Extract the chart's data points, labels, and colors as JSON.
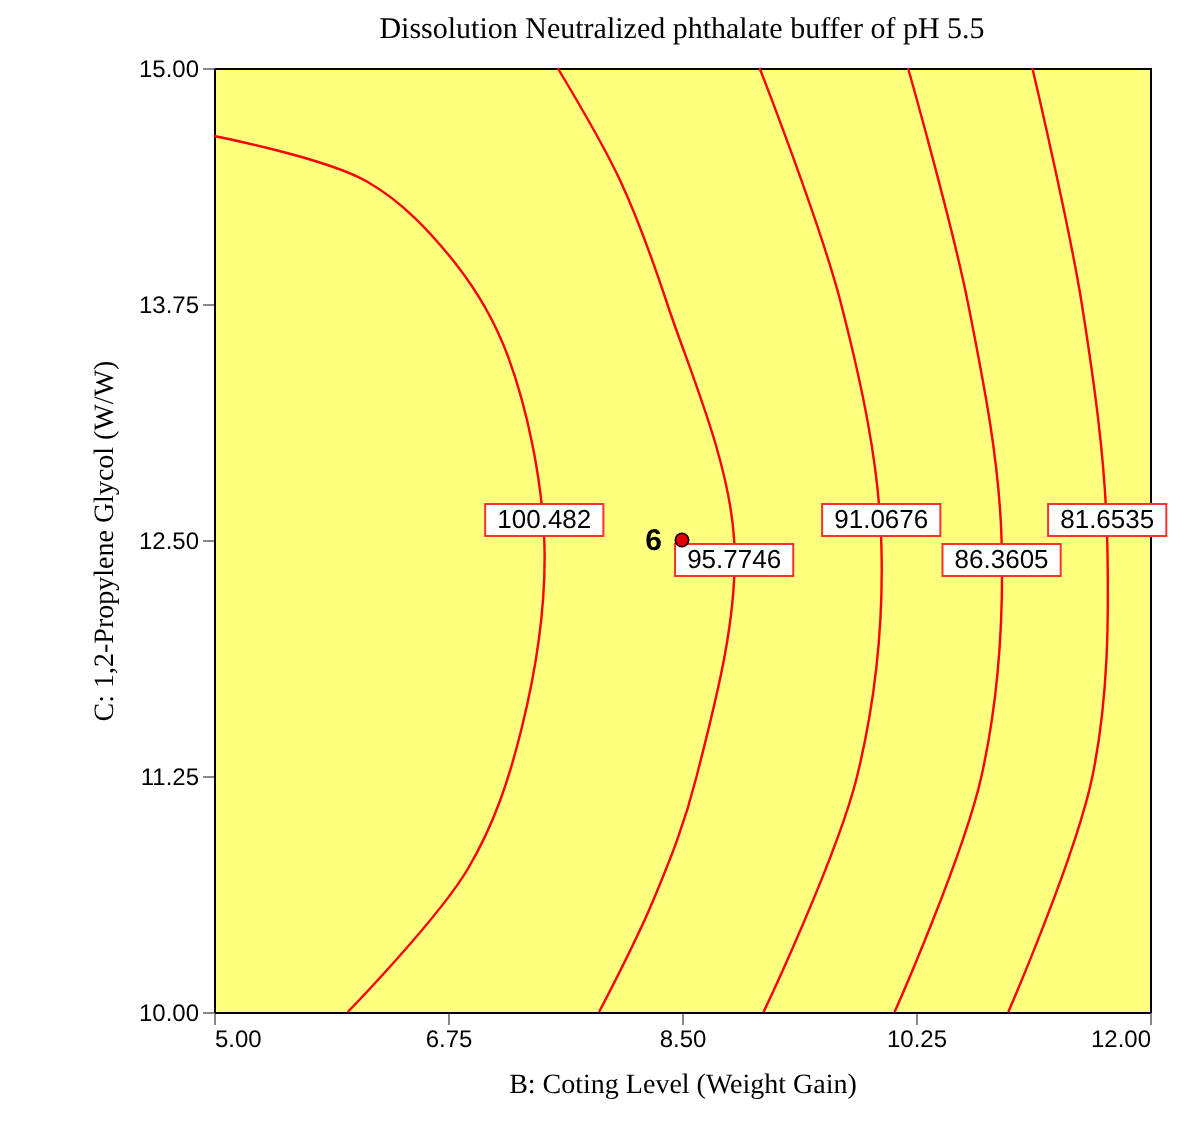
{
  "chart_data": {
    "type": "line",
    "title": "Dissolution Neutralized phthalate buffer of pH 5.5",
    "xlabel": "B: Coting Level (Weight Gain)",
    "ylabel": "C: 1,2-Propylene Glycol (W/W)",
    "xlim": [
      5,
      12
    ],
    "xticks": [
      {
        "value": 5,
        "label": "5.00"
      },
      {
        "value": 6.75,
        "label": "6.75"
      },
      {
        "value": 8.5,
        "label": "8.50"
      },
      {
        "value": 10.25,
        "label": "10.25"
      },
      {
        "value": 12,
        "label": "12.00"
      }
    ],
    "ylim": [
      10,
      15
    ],
    "yticks": [
      {
        "value": 10,
        "label": "10.00"
      },
      {
        "value": 11.25,
        "label": "11.25"
      },
      {
        "value": 12.5,
        "label": "12.50"
      },
      {
        "value": 13.75,
        "label": "13.75"
      },
      {
        "value": 15,
        "label": "15.00"
      }
    ],
    "grid": false,
    "line_style": "solid",
    "series": [
      {
        "name": "100.482",
        "color": "#ff0000",
        "x": [
          5,
          6.14,
          6.8,
          7.2,
          7.47,
          7.3,
          6.9,
          6.0
        ],
        "values": [
          14.64,
          14.4,
          13.97,
          13.47,
          12.5,
          11.5,
          10.76,
          10
        ]
      },
      {
        "name": "95.7746",
        "color": "#ff0000",
        "x": [
          7.57,
          8.04,
          8.39,
          8.89,
          8.61,
          8.29,
          7.88
        ],
        "values": [
          15,
          14.4,
          13.75,
          12.5,
          11.25,
          10.6,
          10
        ]
      },
      {
        "name": "91.0676",
        "color": "#ff0000",
        "x": [
          9.08,
          9.69,
          9.99,
          9.81,
          9.11
        ],
        "values": [
          15,
          13.75,
          12.5,
          11.25,
          10
        ]
      },
      {
        "name": "86.3605",
        "color": "#ff0000",
        "x": [
          10.19,
          10.64,
          10.89,
          10.74,
          10.09
        ],
        "values": [
          15,
          13.75,
          12.5,
          11.25,
          10
        ]
      },
      {
        "name": "81.6535",
        "color": "#ff0000",
        "x": [
          11.12,
          11.49,
          11.68,
          11.57,
          10.94
        ],
        "values": [
          15,
          13.75,
          12.5,
          11.25,
          10
        ]
      },
      {
        "type": "scatter",
        "marker": "circle",
        "color": "#e00000",
        "x": [
          8.5
        ],
        "values": [
          12.5
        ]
      }
    ],
    "annotations": [
      {
        "text": "6",
        "x": 8.5,
        "y": 12.5
      }
    ]
  }
}
